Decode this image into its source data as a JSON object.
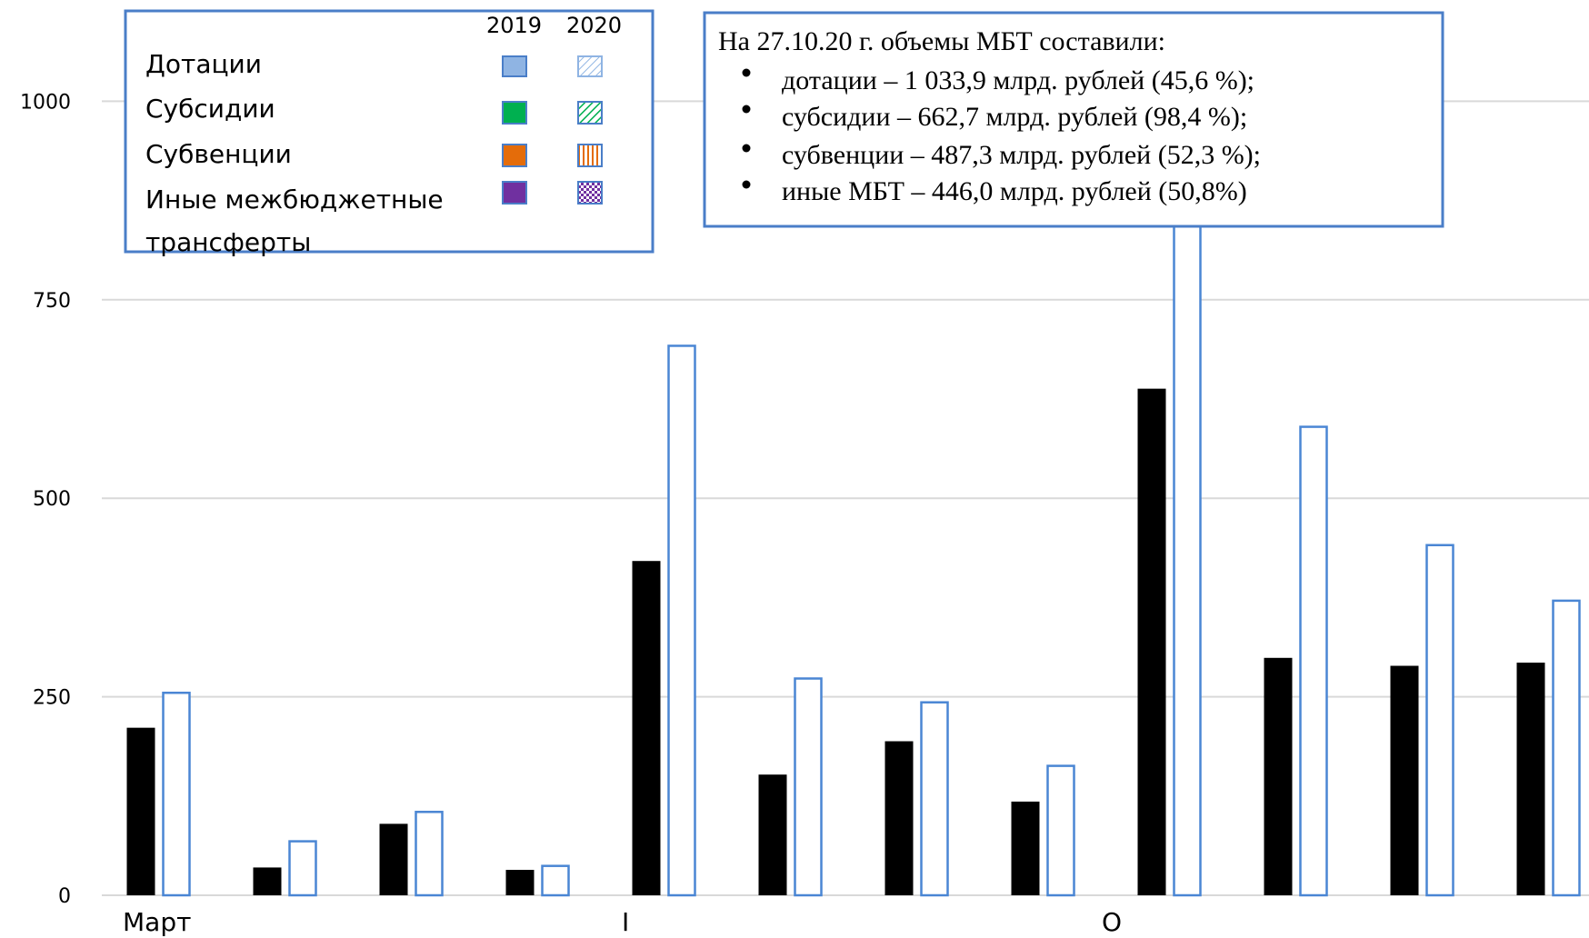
{
  "colors": {
    "bar_2019": "#000000",
    "bar_2020_stroke": "#4a86d4",
    "bar_2020_fill": "#ffffff",
    "grid": "#d9d9d9",
    "frame": "#4a7ec8",
    "dotatsii": "#8fb4e3",
    "subsidii": "#00b050",
    "subventsii": "#e46c0a",
    "inye": "#7030a0"
  },
  "legend": {
    "years": [
      "2019",
      "2020"
    ],
    "items": [
      {
        "label": "Дотации",
        "color_key": "dotatsii",
        "pattern": "diagonal-light"
      },
      {
        "label": "Субсидии",
        "color_key": "subsidii",
        "pattern": "diagonal-bold"
      },
      {
        "label": "Субвенции",
        "color_key": "subventsii",
        "pattern": "vertical"
      },
      {
        "label": "Иные межбюджетные трансферты",
        "color_key": "inye",
        "pattern": "checker"
      }
    ]
  },
  "note": {
    "title": "На 27.10.20 г. объемы МБТ составили:",
    "bullets": [
      "дотации – 1 033,9 млрд. рублей (45,6 %);",
      "субсидии – 662,7 млрд. рублей (98,4 %);",
      "субвенции – 487,3 млрд. рублей (52,3 %);",
      "иные МБТ – 446,0 млрд. рублей (50,8%)"
    ]
  },
  "chart_data": {
    "type": "bar",
    "ylim": [
      0,
      1100
    ],
    "yticks": [
      0,
      250,
      500,
      750,
      1000
    ],
    "grid": true,
    "x_tick_labels": [
      "Март",
      "I",
      "O"
    ],
    "series": [
      {
        "name": "2019",
        "values": [
          211,
          35,
          90,
          32,
          421,
          152,
          194,
          118,
          638,
          299,
          289,
          293
        ]
      },
      {
        "name": "2020",
        "values": [
          255,
          68,
          105,
          37,
          692,
          273,
          243,
          163,
          1090,
          590,
          441,
          371
        ]
      }
    ]
  }
}
